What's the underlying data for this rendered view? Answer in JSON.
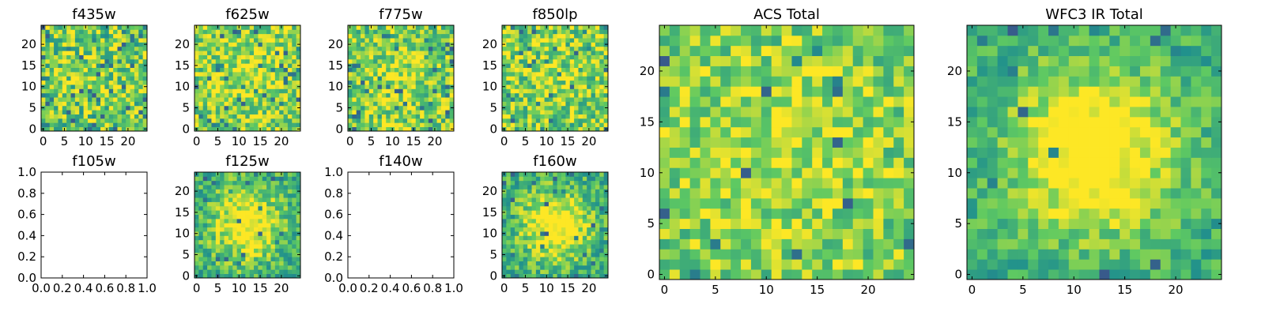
{
  "chart_data": [
    {
      "id": "f435w",
      "title": "f435w",
      "type": "heatmap",
      "has_data": true,
      "grid": false,
      "xlim": [
        -0.5,
        24.5
      ],
      "ylim": [
        -0.5,
        24.5
      ],
      "xticks": [
        0,
        5,
        10,
        15,
        20
      ],
      "yticks": [
        0,
        5,
        10,
        15,
        20
      ],
      "seed": 11,
      "blob_strength": 0.05,
      "noise": 0.55,
      "bias": 0.2,
      "dark_fraction": 0.07
    },
    {
      "id": "f625w",
      "title": "f625w",
      "type": "heatmap",
      "has_data": true,
      "grid": false,
      "xlim": [
        -0.5,
        24.5
      ],
      "ylim": [
        -0.5,
        24.5
      ],
      "xticks": [
        0,
        5,
        10,
        15,
        20
      ],
      "yticks": [
        0,
        5,
        10,
        15,
        20
      ],
      "seed": 23,
      "blob_strength": 0.1,
      "noise": 0.5,
      "bias": 0.28,
      "dark_fraction": 0.05
    },
    {
      "id": "f775w",
      "title": "f775w",
      "type": "heatmap",
      "has_data": true,
      "grid": false,
      "xlim": [
        -0.5,
        24.5
      ],
      "ylim": [
        -0.5,
        24.5
      ],
      "xticks": [
        0,
        5,
        10,
        15,
        20
      ],
      "yticks": [
        0,
        5,
        10,
        15,
        20
      ],
      "seed": 37,
      "blob_strength": 0.08,
      "noise": 0.5,
      "bias": 0.25,
      "dark_fraction": 0.06
    },
    {
      "id": "f850lp",
      "title": "f850lp",
      "type": "heatmap",
      "has_data": true,
      "grid": false,
      "xlim": [
        -0.5,
        24.5
      ],
      "ylim": [
        -0.5,
        24.5
      ],
      "xticks": [
        0,
        5,
        10,
        15,
        20
      ],
      "yticks": [
        0,
        5,
        10,
        15,
        20
      ],
      "seed": 41,
      "blob_strength": 0.08,
      "noise": 0.52,
      "bias": 0.24,
      "dark_fraction": 0.06
    },
    {
      "id": "f105w",
      "title": "f105w",
      "type": "heatmap",
      "has_data": false,
      "grid": false,
      "xlim": [
        0,
        1
      ],
      "ylim": [
        0,
        1
      ],
      "xticks": [
        0.0,
        0.2,
        0.4,
        0.6,
        0.8,
        1.0
      ],
      "yticks": [
        0.0,
        0.2,
        0.4,
        0.6,
        0.8,
        1.0
      ]
    },
    {
      "id": "f125w",
      "title": "f125w",
      "type": "heatmap",
      "has_data": true,
      "grid": false,
      "xlim": [
        -0.5,
        24.5
      ],
      "ylim": [
        -0.5,
        24.5
      ],
      "xticks": [
        0,
        5,
        10,
        15,
        20
      ],
      "yticks": [
        0,
        5,
        10,
        15,
        20
      ],
      "seed": 53,
      "blob_strength": 0.45,
      "noise": 0.42,
      "bias": 0.15,
      "dark_fraction": 0.04
    },
    {
      "id": "f140w",
      "title": "f140w",
      "type": "heatmap",
      "has_data": false,
      "grid": false,
      "xlim": [
        0,
        1
      ],
      "ylim": [
        0,
        1
      ],
      "xticks": [
        0.0,
        0.2,
        0.4,
        0.6,
        0.8,
        1.0
      ],
      "yticks": [
        0.0,
        0.2,
        0.4,
        0.6,
        0.8,
        1.0
      ]
    },
    {
      "id": "f160w",
      "title": "f160w",
      "type": "heatmap",
      "has_data": true,
      "grid": false,
      "xlim": [
        -0.5,
        24.5
      ],
      "ylim": [
        -0.5,
        24.5
      ],
      "xticks": [
        0,
        5,
        10,
        15,
        20
      ],
      "yticks": [
        0,
        5,
        10,
        15,
        20
      ],
      "seed": 67,
      "blob_strength": 0.5,
      "noise": 0.4,
      "bias": 0.15,
      "dark_fraction": 0.04
    },
    {
      "id": "acs-total",
      "title": "ACS Total",
      "type": "heatmap",
      "has_data": true,
      "grid": false,
      "xlim": [
        -0.5,
        24.5
      ],
      "ylim": [
        -0.5,
        24.5
      ],
      "xticks": [
        0,
        5,
        10,
        15,
        20
      ],
      "yticks": [
        0,
        5,
        10,
        15,
        20
      ],
      "seed": 79,
      "blob_strength": 0.1,
      "noise": 0.42,
      "bias": 0.3,
      "dark_fraction": 0.03
    },
    {
      "id": "wfc3-ir-total",
      "title": "WFC3 IR Total",
      "type": "heatmap",
      "has_data": true,
      "grid": false,
      "xlim": [
        -0.5,
        24.5
      ],
      "ylim": [
        -0.5,
        24.5
      ],
      "xticks": [
        0,
        5,
        10,
        15,
        20
      ],
      "yticks": [
        0,
        5,
        10,
        15,
        20
      ],
      "seed": 97,
      "blob_strength": 0.55,
      "noise": 0.32,
      "bias": 0.18,
      "dark_fraction": 0.025
    }
  ],
  "colormap": {
    "name": "viridis",
    "stops": [
      "#440154",
      "#3b528b",
      "#21918c",
      "#5ec962",
      "#fde725"
    ]
  }
}
